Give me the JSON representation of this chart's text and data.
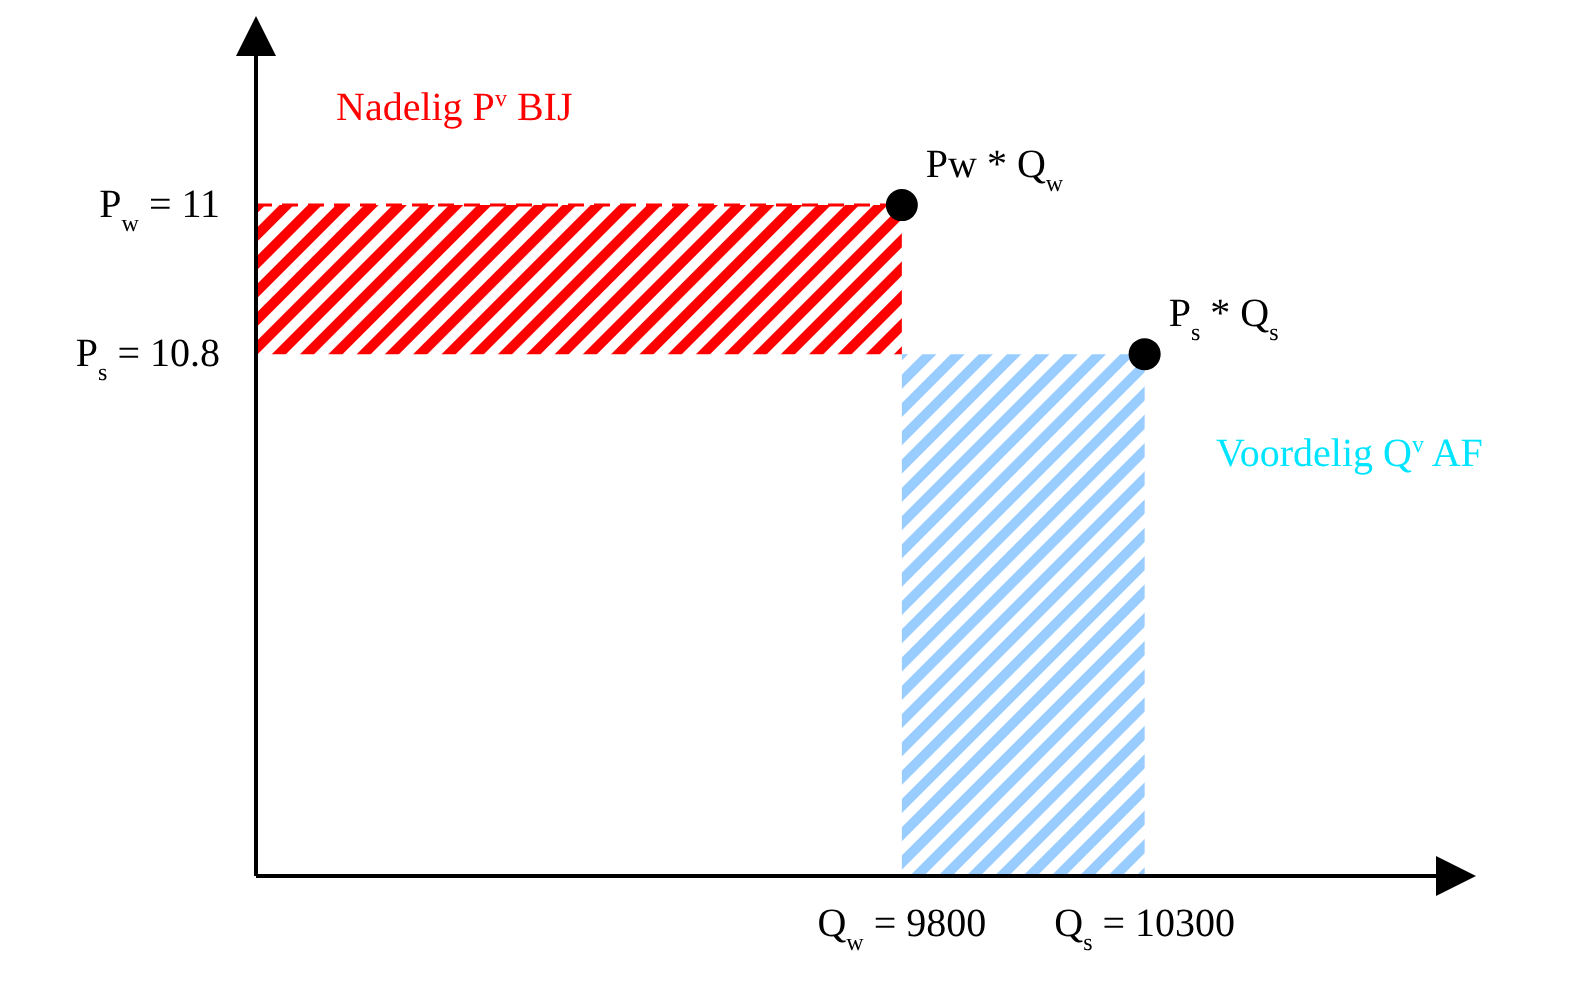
{
  "chart_data": {
    "type": "scatter",
    "xlim": [
      8470,
      10900
    ],
    "ylim": [
      10.1,
      11.2
    ],
    "xticks": [
      {
        "value": 9800,
        "label": "Q$_{w}$ = 9800"
      },
      {
        "value": 10300,
        "label": "Q$_{s}$ = 10300"
      }
    ],
    "yticks": [
      {
        "value": 11,
        "label": "P$_{w}$ = 11"
      },
      {
        "value": 10.8,
        "label": "P$_{s}$ = 10.8"
      }
    ],
    "grid": false,
    "legend": false,
    "series": [
      {
        "type": "line",
        "color": "#ff0000",
        "x": [
          8470,
          9800
        ],
        "values": [
          11,
          11
        ],
        "lower": [
          10.8,
          10.8
        ],
        "upper": [
          11,
          11
        ],
        "line_style": "dashed"
      },
      {
        "type": "area",
        "color": "#99ccff",
        "x": [
          9800,
          10300
        ],
        "values": [
          10.8,
          10.8
        ]
      },
      {
        "color": "#000000",
        "marker": "circle",
        "x": [
          9800,
          10300
        ],
        "values": [
          11,
          10.8
        ]
      }
    ],
    "annotations": [
      "Nadelig P$^{v}$ BIJ",
      "Voordelig Q$^{v}$ AF",
      {
        "text": "Pw * Q$_{w}$",
        "x": 9800,
        "y": 11
      },
      {
        "text": "P$_{s}$ * Q$_{s}$",
        "x": 10300,
        "y": 10.8
      }
    ]
  }
}
